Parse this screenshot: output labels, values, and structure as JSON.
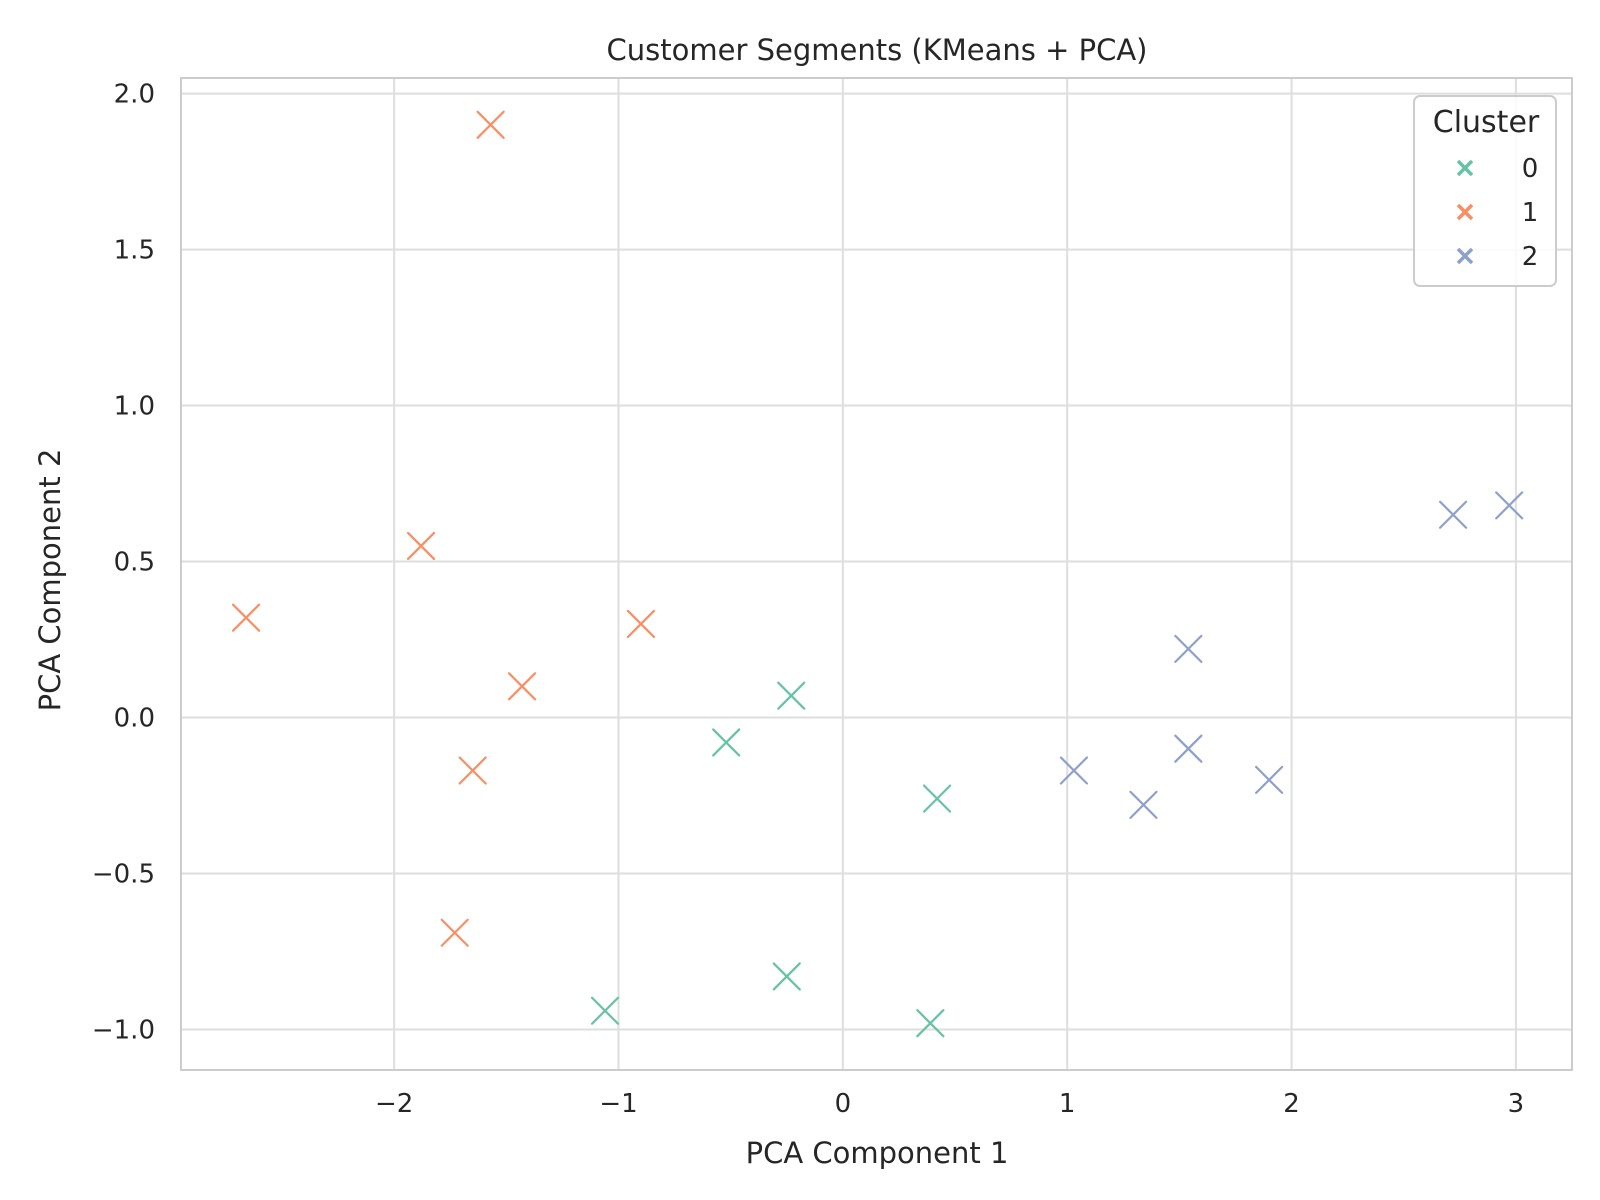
{
  "chart_data": {
    "type": "scatter",
    "title": "Customer Segments (KMeans + PCA)",
    "xlabel": "PCA Component 1",
    "ylabel": "PCA Component 2",
    "xlim": [
      -2.95,
      3.25
    ],
    "ylim": [
      -1.13,
      2.05
    ],
    "xticks": [
      -2,
      -1,
      0,
      1,
      2,
      3
    ],
    "xtick_labels": [
      "−2",
      "−1",
      "0",
      "1",
      "2",
      "3"
    ],
    "yticks": [
      -1.0,
      -0.5,
      0.0,
      0.5,
      1.0,
      1.5,
      2.0
    ],
    "ytick_labels": [
      "−1.0",
      "−0.5",
      "0.0",
      "0.5",
      "1.0",
      "1.5",
      "2.0"
    ],
    "grid": true,
    "marker": "x",
    "legend": {
      "title": "Cluster",
      "position": "top-right"
    },
    "series": [
      {
        "name": "0",
        "color": "#66c2a5",
        "points": [
          {
            "x": -0.23,
            "y": 0.07
          },
          {
            "x": -0.52,
            "y": -0.08
          },
          {
            "x": 0.42,
            "y": -0.26
          },
          {
            "x": -0.25,
            "y": -0.83
          },
          {
            "x": -1.06,
            "y": -0.94
          },
          {
            "x": 0.39,
            "y": -0.98
          }
        ]
      },
      {
        "name": "1",
        "color": "#fc8d62",
        "points": [
          {
            "x": -1.57,
            "y": 1.9
          },
          {
            "x": -1.88,
            "y": 0.55
          },
          {
            "x": -2.66,
            "y": 0.32
          },
          {
            "x": -0.9,
            "y": 0.3
          },
          {
            "x": -1.43,
            "y": 0.1
          },
          {
            "x": -1.65,
            "y": -0.17
          },
          {
            "x": -1.73,
            "y": -0.69
          }
        ]
      },
      {
        "name": "2",
        "color": "#8da0cb",
        "points": [
          {
            "x": 2.72,
            "y": 0.65
          },
          {
            "x": 2.97,
            "y": 0.68
          },
          {
            "x": 1.54,
            "y": 0.22
          },
          {
            "x": 1.54,
            "y": -0.1
          },
          {
            "x": 1.03,
            "y": -0.17
          },
          {
            "x": 1.9,
            "y": -0.2
          },
          {
            "x": 1.34,
            "y": -0.28
          }
        ]
      }
    ]
  }
}
